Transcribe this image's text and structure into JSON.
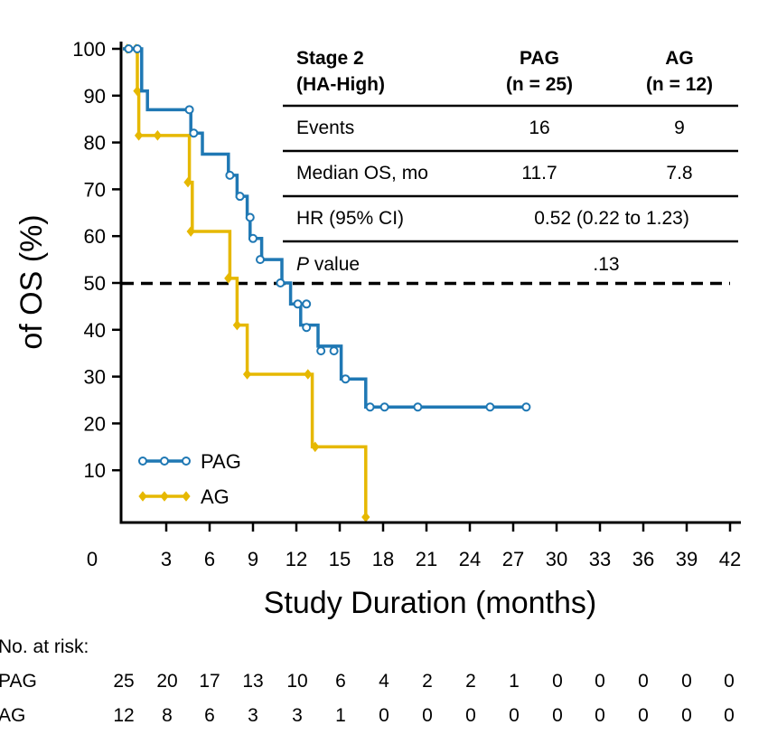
{
  "chart_data": {
    "type": "line",
    "subtype": "kaplan-meier step curve",
    "xlabel": "Study Duration (months)",
    "ylabel": "of OS (%)",
    "xlim": [
      0,
      42
    ],
    "ylim": [
      0,
      100
    ],
    "x_ticks": [
      0,
      3,
      6,
      9,
      12,
      15,
      18,
      21,
      24,
      27,
      30,
      33,
      36,
      39,
      42
    ],
    "y_ticks": [
      10,
      20,
      30,
      40,
      50,
      60,
      70,
      80,
      90,
      100
    ],
    "reference_line": {
      "y": 50,
      "style": "dashed"
    },
    "grid": false,
    "legend_position": "bottom-left",
    "series": [
      {
        "name": "PAG",
        "color": "#1f78b4",
        "steps": [
          [
            0,
            100
          ],
          [
            1.0,
            100
          ],
          [
            1.3,
            91
          ],
          [
            1.7,
            87
          ],
          [
            4.7,
            82
          ],
          [
            5.5,
            77.5
          ],
          [
            7.3,
            73
          ],
          [
            7.9,
            68.5
          ],
          [
            8.6,
            64
          ],
          [
            8.8,
            59.5
          ],
          [
            9.6,
            55
          ],
          [
            11.0,
            50
          ],
          [
            11.6,
            45.5
          ],
          [
            12.3,
            41
          ],
          [
            13.5,
            36.5
          ],
          [
            15.1,
            29.5
          ],
          [
            16.8,
            23.5
          ],
          [
            28.0,
            23.5
          ]
        ],
        "censored": [
          [
            0.4,
            100
          ],
          [
            1.0,
            100
          ],
          [
            4.6,
            87
          ],
          [
            4.9,
            82
          ],
          [
            7.4,
            73
          ],
          [
            8.1,
            68.5
          ],
          [
            8.8,
            64
          ],
          [
            9.0,
            59.5
          ],
          [
            9.5,
            55
          ],
          [
            10.9,
            50
          ],
          [
            12.1,
            45.5
          ],
          [
            12.7,
            45.5
          ],
          [
            12.7,
            40.5
          ],
          [
            13.7,
            35.5
          ],
          [
            14.6,
            35.5
          ],
          [
            15.4,
            29.5
          ],
          [
            17.1,
            23.5
          ],
          [
            18.1,
            23.5
          ],
          [
            20.4,
            23.5
          ],
          [
            25.4,
            23.5
          ],
          [
            27.9,
            23.5
          ]
        ]
      },
      {
        "name": "AG",
        "color": "#e6b800",
        "steps": [
          [
            0,
            100
          ],
          [
            0.8,
            100
          ],
          [
            1.0,
            91
          ],
          [
            1.1,
            81.5
          ],
          [
            4.6,
            71.5
          ],
          [
            4.8,
            61
          ],
          [
            7.4,
            51
          ],
          [
            7.9,
            41
          ],
          [
            8.6,
            30.5
          ],
          [
            13.1,
            15
          ],
          [
            16.8,
            0
          ]
        ],
        "censored": [
          [
            0.3,
            100
          ],
          [
            0.9,
            100
          ],
          [
            1.0,
            91
          ],
          [
            1.1,
            81.5
          ],
          [
            2.4,
            81.5
          ],
          [
            4.5,
            71.5
          ],
          [
            4.7,
            61
          ],
          [
            7.3,
            51
          ],
          [
            7.9,
            41
          ],
          [
            8.6,
            30.5
          ],
          [
            12.8,
            30.5
          ],
          [
            13.3,
            15
          ],
          [
            16.8,
            0
          ]
        ]
      }
    ]
  },
  "table": {
    "header": {
      "line1": "Stage 2",
      "line2": "(HA-High)"
    },
    "columns": [
      {
        "line1": "PAG",
        "line2": "(n = 25)"
      },
      {
        "line1": "AG",
        "line2": "(n = 12)"
      }
    ],
    "rows": [
      {
        "label": "Events",
        "pag": "16",
        "ag": "9"
      },
      {
        "label": "Median OS, mo",
        "pag": "11.7",
        "ag": "7.8"
      },
      {
        "label": "HR (95% CI)",
        "merged": "0.52 (0.22 to 1.23)"
      },
      {
        "label_italic": "P",
        "label_rest": " value",
        "merged": ".13"
      }
    ]
  },
  "legend": [
    {
      "label": "PAG"
    },
    {
      "label": "AG"
    }
  ],
  "risk_table": {
    "title": "No. at risk:",
    "rows": [
      {
        "label": "PAG",
        "values": [
          "25",
          "20",
          "17",
          "13",
          "10",
          "6",
          "4",
          "2",
          "2",
          "1",
          "0",
          "0",
          "0",
          "0",
          "0"
        ]
      },
      {
        "label": "AG",
        "values": [
          "12",
          "8",
          "6",
          "3",
          "3",
          "1",
          "0",
          "0",
          "0",
          "0",
          "0",
          "0",
          "0",
          "0",
          "0"
        ]
      }
    ]
  }
}
